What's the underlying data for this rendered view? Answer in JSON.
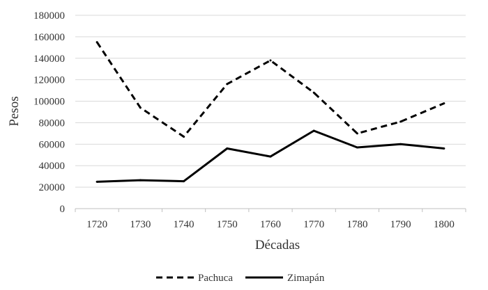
{
  "chart_data": {
    "type": "line",
    "title": "",
    "xlabel": "Décadas",
    "ylabel": "Pesos",
    "categories": [
      "1720",
      "1730",
      "1740",
      "1750",
      "1760",
      "1770",
      "1780",
      "1790",
      "1800"
    ],
    "ylim": [
      0,
      180000
    ],
    "yticks": [
      "0",
      "20000",
      "40000",
      "60000",
      "80000",
      "100000",
      "120000",
      "140000",
      "160000",
      "180000"
    ],
    "grid": true,
    "legend_position": "bottom",
    "series": [
      {
        "name": "Pachuca",
        "style": "dashed",
        "color": "#000000",
        "values": [
          155000,
          94000,
          67000,
          116000,
          138000,
          108000,
          70000,
          81000,
          98000
        ]
      },
      {
        "name": "Zimapán",
        "style": "solid",
        "color": "#000000",
        "values": [
          25000,
          26500,
          25500,
          56000,
          48500,
          72500,
          57000,
          60000,
          56000
        ]
      }
    ]
  }
}
